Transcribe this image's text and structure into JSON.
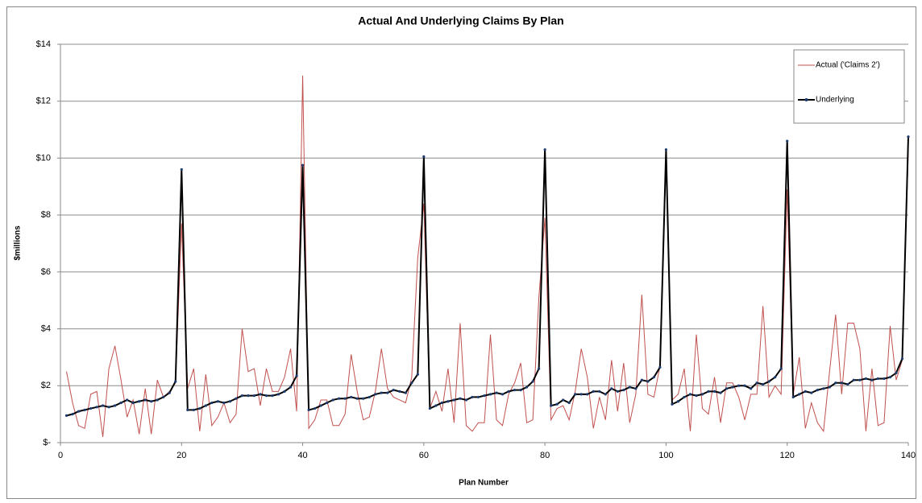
{
  "chart_data": {
    "type": "line",
    "title": "Actual And Underlying Claims By Plan",
    "x_label": "Plan Number",
    "y_label": "$millions",
    "x": [
      1,
      2,
      3,
      4,
      5,
      6,
      7,
      8,
      9,
      10,
      11,
      12,
      13,
      14,
      15,
      16,
      17,
      18,
      19,
      20,
      21,
      22,
      23,
      24,
      25,
      26,
      27,
      28,
      29,
      30,
      31,
      32,
      33,
      34,
      35,
      36,
      37,
      38,
      39,
      40,
      41,
      42,
      43,
      44,
      45,
      46,
      47,
      48,
      49,
      50,
      51,
      52,
      53,
      54,
      55,
      56,
      57,
      58,
      59,
      60,
      61,
      62,
      63,
      64,
      65,
      66,
      67,
      68,
      69,
      70,
      71,
      72,
      73,
      74,
      75,
      76,
      77,
      78,
      79,
      80,
      81,
      82,
      83,
      84,
      85,
      86,
      87,
      88,
      89,
      90,
      91,
      92,
      93,
      94,
      95,
      96,
      97,
      98,
      99,
      100,
      101,
      102,
      103,
      104,
      105,
      106,
      107,
      108,
      109,
      110,
      111,
      112,
      113,
      114,
      115,
      116,
      117,
      118,
      119,
      120,
      121,
      122,
      123,
      124,
      125,
      126,
      127,
      128,
      129,
      130,
      131,
      132,
      133,
      134,
      135,
      136,
      137,
      138,
      139,
      140
    ],
    "series": [
      {
        "name": "Actual ('Claims 2')",
        "color": "#c0504d",
        "markers": false,
        "values": [
          2.5,
          1.4,
          0.6,
          0.5,
          1.7,
          1.8,
          0.2,
          2.6,
          3.4,
          2.2,
          0.9,
          1.5,
          0.3,
          1.9,
          0.3,
          2.2,
          1.6,
          1.8,
          2.1,
          7.7,
          1.9,
          2.6,
          0.4,
          2.4,
          0.6,
          0.9,
          1.4,
          0.7,
          1.0,
          4.0,
          2.5,
          2.6,
          1.3,
          2.6,
          1.8,
          1.8,
          2.3,
          3.3,
          1.1,
          12.9,
          0.5,
          0.8,
          1.5,
          1.5,
          0.6,
          0.6,
          1.0,
          3.1,
          1.8,
          0.8,
          0.9,
          1.8,
          3.3,
          1.9,
          1.6,
          1.5,
          1.4,
          2.3,
          6.5,
          8.4,
          1.2,
          1.8,
          1.1,
          2.6,
          0.7,
          4.2,
          0.6,
          0.4,
          0.7,
          0.7,
          3.8,
          0.8,
          0.6,
          1.7,
          2.1,
          2.8,
          0.7,
          0.8,
          5.1,
          7.9,
          0.8,
          1.2,
          1.3,
          0.8,
          1.8,
          3.3,
          2.3,
          0.5,
          1.6,
          0.8,
          2.9,
          1.1,
          2.8,
          0.7,
          1.7,
          5.2,
          1.7,
          1.6,
          2.7,
          9.9,
          1.5,
          1.7,
          2.6,
          0.4,
          3.8,
          1.2,
          1.0,
          2.3,
          0.7,
          2.1,
          2.1,
          1.6,
          0.8,
          1.7,
          1.7,
          4.8,
          1.6,
          2.0,
          1.7,
          8.9,
          1.7,
          3.0,
          0.5,
          1.4,
          0.7,
          0.4,
          2.5,
          4.5,
          1.7,
          4.2,
          4.2,
          3.3,
          0.4,
          2.6,
          0.6,
          0.7,
          4.1,
          2.2,
          2.9,
          10.3
        ]
      },
      {
        "name": "Underlying",
        "color": "#000000",
        "markers": true,
        "values": [
          0.95,
          1.0,
          1.1,
          1.15,
          1.2,
          1.25,
          1.3,
          1.25,
          1.3,
          1.4,
          1.5,
          1.4,
          1.45,
          1.5,
          1.45,
          1.5,
          1.6,
          1.75,
          2.15,
          9.6,
          1.15,
          1.15,
          1.2,
          1.3,
          1.4,
          1.45,
          1.4,
          1.45,
          1.55,
          1.65,
          1.65,
          1.65,
          1.7,
          1.65,
          1.65,
          1.7,
          1.8,
          1.95,
          2.35,
          9.75,
          1.15,
          1.2,
          1.3,
          1.4,
          1.5,
          1.55,
          1.55,
          1.6,
          1.55,
          1.55,
          1.6,
          1.7,
          1.75,
          1.75,
          1.85,
          1.8,
          1.75,
          2.1,
          2.4,
          10.05,
          1.2,
          1.3,
          1.4,
          1.45,
          1.5,
          1.55,
          1.5,
          1.6,
          1.6,
          1.65,
          1.7,
          1.75,
          1.7,
          1.8,
          1.85,
          1.85,
          1.95,
          2.15,
          2.6,
          10.3,
          1.3,
          1.35,
          1.5,
          1.4,
          1.7,
          1.7,
          1.7,
          1.8,
          1.8,
          1.7,
          1.9,
          1.8,
          1.85,
          1.95,
          1.9,
          2.2,
          2.15,
          2.3,
          2.65,
          10.3,
          1.35,
          1.45,
          1.6,
          1.7,
          1.65,
          1.7,
          1.8,
          1.8,
          1.75,
          1.9,
          1.95,
          2.0,
          2.0,
          1.9,
          2.1,
          2.05,
          2.15,
          2.3,
          2.6,
          10.6,
          1.6,
          1.7,
          1.8,
          1.75,
          1.85,
          1.9,
          1.95,
          2.1,
          2.1,
          2.05,
          2.2,
          2.2,
          2.25,
          2.2,
          2.25,
          2.25,
          2.3,
          2.45,
          2.95,
          10.75
        ]
      }
    ],
    "xlim": [
      0,
      140
    ],
    "xticks": [
      0,
      20,
      40,
      60,
      80,
      100,
      120,
      140
    ],
    "ylim": [
      0,
      14
    ],
    "yticks": [
      {
        "value": 0,
        "label": "$-"
      },
      {
        "value": 2,
        "label": "$2"
      },
      {
        "value": 4,
        "label": "$4"
      },
      {
        "value": 6,
        "label": "$6"
      },
      {
        "value": 8,
        "label": "$8"
      },
      {
        "value": 10,
        "label": "$10"
      },
      {
        "value": 12,
        "label": "$12"
      },
      {
        "value": 14,
        "label": "$14"
      }
    ],
    "grid": true,
    "legend": "top-right"
  }
}
